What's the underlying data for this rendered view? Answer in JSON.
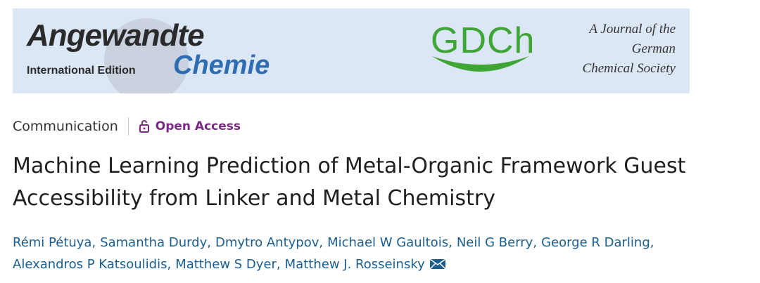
{
  "banner": {
    "journal": "Angewandte",
    "edition": "International Edition",
    "journal_sub": "Chemie",
    "society_logo": "GDCh",
    "society_lines": [
      "A Journal of the",
      "German",
      "Chemical Society"
    ]
  },
  "article": {
    "type": "Communication",
    "access": "Open Access",
    "title_lines": [
      "Machine Learning Prediction of Metal-Organic Framework Guest",
      "Accessibility from Linker and Metal Chemistry"
    ],
    "author_lines": [
      [
        "Rémi Pétuya,",
        "Samantha Durdy,",
        "Dmytro Antypov,",
        "Michael W Gaultois,",
        "Neil G Berry,",
        "George R Darling,"
      ],
      [
        "Alexandros P Katsoulidis,",
        "Matthew S Dyer,",
        "Matthew J. Rosseinsky"
      ]
    ]
  }
}
